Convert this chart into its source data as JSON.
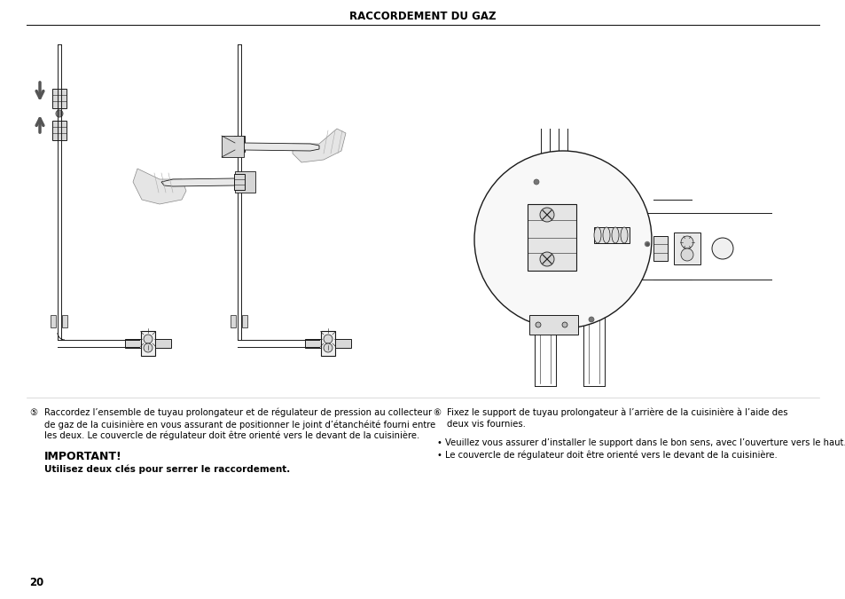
{
  "title": "RACCORDEMENT DU GAZ",
  "background_color": "#ffffff",
  "text_color": "#000000",
  "title_fontsize": 8.5,
  "page_number": "20",
  "step4_number": "⑤",
  "step4_line1": "Raccordez l’ensemble de tuyau prolongateur et de régulateur de pression au collecteur",
  "step4_line2": "de gaz de la cuisinière en vous assurant de positionner le joint d’étanchéité fourni entre",
  "step4_line3": "les deux. Le couvercle de régulateur doit être orienté vers le devant de la cuisinière.",
  "important_label": "IMPORTANT!",
  "important_text": "Utilisez deux clés pour serrer le raccordement.",
  "step5_number": "⑥",
  "step5_line1": "Fixez le support de tuyau prolongateur à l’arrière de la cuisinière à l’aide des",
  "step5_line2": "deux vis fournies.",
  "bullet1": "Veuillez vous assurer d’installer le support dans le bon sens, avec l’ouverture vers le haut.",
  "bullet2": "Le couvercle de régulateur doit être orienté vers le devant de la cuisinière.",
  "fig_bg": "#ffffff",
  "line_color": "#1a1a1a",
  "fill_light": "#f0f0f0",
  "fill_med": "#d8d8d8",
  "fill_dark": "#b0b0b0"
}
